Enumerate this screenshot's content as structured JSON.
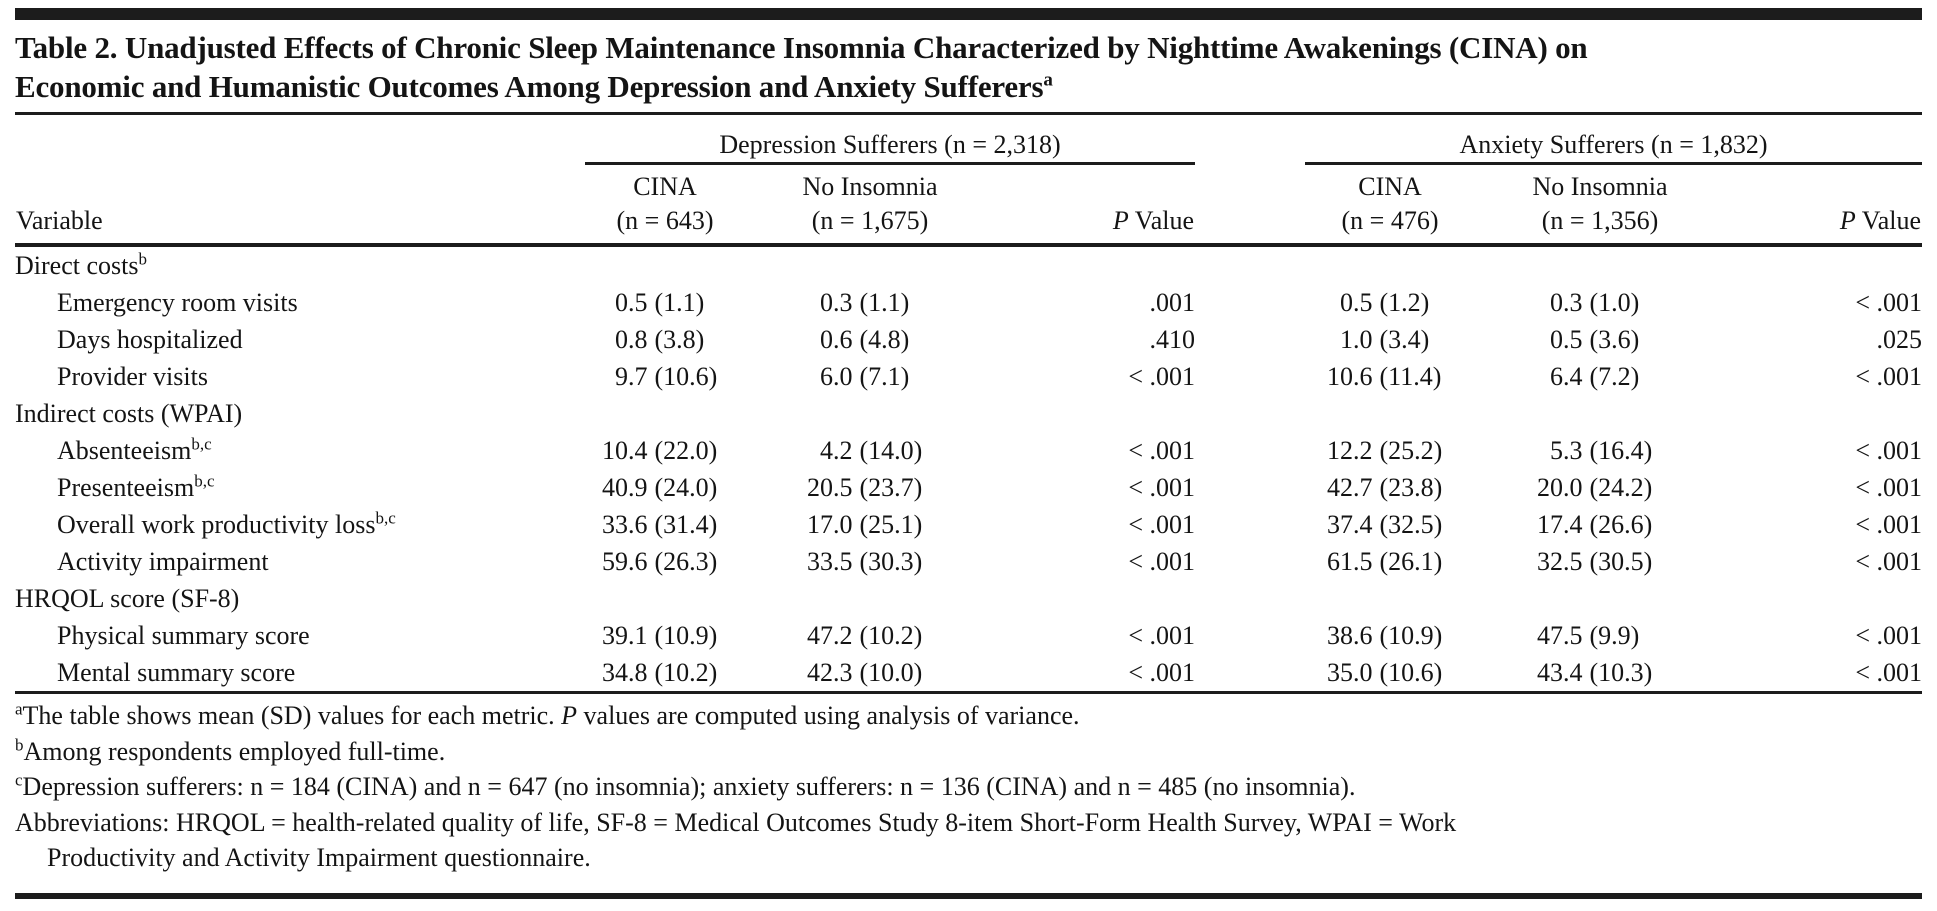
{
  "title": {
    "line1": "Table 2. Unadjusted Effects of Chronic Sleep Maintenance Insomnia Characterized by Nighttime Awakenings (CINA) on",
    "line2": "Economic and Humanistic Outcomes Among Depression and Anxiety Sufferers",
    "sup": "a"
  },
  "header": {
    "variable_label": "Variable",
    "group1": {
      "title": "Depression Sufferers (n = 2,318)",
      "cols": [
        {
          "top": "CINA",
          "bottom": "(n = 643)"
        },
        {
          "top": "No Insomnia",
          "bottom": "(n = 1,675)"
        }
      ],
      "p_italic": "P",
      "p_rest": " Value"
    },
    "group2": {
      "title": "Anxiety Sufferers (n = 1,832)",
      "cols": [
        {
          "top": "CINA",
          "bottom": "(n = 476)"
        },
        {
          "top": "No Insomnia",
          "bottom": "(n = 1,356)"
        }
      ],
      "p_italic": "P",
      "p_rest": " Value"
    }
  },
  "rows": [
    {
      "type": "section",
      "label": "Direct costs",
      "sup": "b"
    },
    {
      "type": "data",
      "label": "Emergency room visits",
      "sup": "",
      "dep": {
        "cina": [
          "0.5",
          "(1.1)"
        ],
        "no_insomnia": [
          "0.3",
          "(1.1)"
        ],
        "p": ".001"
      },
      "anx": {
        "cina": [
          "0.5",
          "(1.2)"
        ],
        "no_insomnia": [
          "0.3",
          "(1.0)"
        ],
        "p": "< .001"
      }
    },
    {
      "type": "data",
      "label": "Days hospitalized",
      "sup": "",
      "dep": {
        "cina": [
          "0.8",
          "(3.8)"
        ],
        "no_insomnia": [
          "0.6",
          "(4.8)"
        ],
        "p": ".410"
      },
      "anx": {
        "cina": [
          "1.0",
          "(3.4)"
        ],
        "no_insomnia": [
          "0.5",
          "(3.6)"
        ],
        "p": ".025"
      }
    },
    {
      "type": "data",
      "label": "Provider visits",
      "sup": "",
      "dep": {
        "cina": [
          "9.7",
          "(10.6)"
        ],
        "no_insomnia": [
          "6.0",
          "(7.1)"
        ],
        "p": "< .001"
      },
      "anx": {
        "cina": [
          "10.6",
          "(11.4)"
        ],
        "no_insomnia": [
          "6.4",
          "(7.2)"
        ],
        "p": "< .001"
      }
    },
    {
      "type": "section",
      "label": "Indirect costs (WPAI)",
      "sup": ""
    },
    {
      "type": "data",
      "label": "Absenteeism",
      "sup": "b,c",
      "dep": {
        "cina": [
          "10.4",
          "(22.0)"
        ],
        "no_insomnia": [
          "4.2",
          "(14.0)"
        ],
        "p": "< .001"
      },
      "anx": {
        "cina": [
          "12.2",
          "(25.2)"
        ],
        "no_insomnia": [
          "5.3",
          "(16.4)"
        ],
        "p": "< .001"
      }
    },
    {
      "type": "data",
      "label": "Presenteeism",
      "sup": "b,c",
      "dep": {
        "cina": [
          "40.9",
          "(24.0)"
        ],
        "no_insomnia": [
          "20.5",
          "(23.7)"
        ],
        "p": "< .001"
      },
      "anx": {
        "cina": [
          "42.7",
          "(23.8)"
        ],
        "no_insomnia": [
          "20.0",
          "(24.2)"
        ],
        "p": "< .001"
      }
    },
    {
      "type": "data",
      "label": "Overall work productivity loss",
      "sup": "b,c",
      "dep": {
        "cina": [
          "33.6",
          "(31.4)"
        ],
        "no_insomnia": [
          "17.0",
          "(25.1)"
        ],
        "p": "< .001"
      },
      "anx": {
        "cina": [
          "37.4",
          "(32.5)"
        ],
        "no_insomnia": [
          "17.4",
          "(26.6)"
        ],
        "p": "< .001"
      }
    },
    {
      "type": "data",
      "label": "Activity impairment",
      "sup": "",
      "dep": {
        "cina": [
          "59.6",
          "(26.3)"
        ],
        "no_insomnia": [
          "33.5",
          "(30.3)"
        ],
        "p": "< .001"
      },
      "anx": {
        "cina": [
          "61.5",
          "(26.1)"
        ],
        "no_insomnia": [
          "32.5",
          "(30.5)"
        ],
        "p": "< .001"
      }
    },
    {
      "type": "section",
      "label": "HRQOL score (SF-8)",
      "sup": ""
    },
    {
      "type": "data",
      "label": "Physical summary score",
      "sup": "",
      "dep": {
        "cina": [
          "39.1",
          "(10.9)"
        ],
        "no_insomnia": [
          "47.2",
          "(10.2)"
        ],
        "p": "< .001"
      },
      "anx": {
        "cina": [
          "38.6",
          "(10.9)"
        ],
        "no_insomnia": [
          "47.5",
          "(9.9)"
        ],
        "p": "< .001"
      }
    },
    {
      "type": "data",
      "label": "Mental summary score",
      "sup": "",
      "dep": {
        "cina": [
          "34.8",
          "(10.2)"
        ],
        "no_insomnia": [
          "42.3",
          "(10.0)"
        ],
        "p": "< .001"
      },
      "anx": {
        "cina": [
          "35.0",
          "(10.6)"
        ],
        "no_insomnia": [
          "43.4",
          "(10.3)"
        ],
        "p": "< .001"
      }
    }
  ],
  "footnotes": [
    {
      "sup": "a",
      "segments": [
        {
          "t": "The table shows mean (SD) values for each metric. "
        },
        {
          "t": "P",
          "i": true
        },
        {
          "t": " values are computed using analysis of variance."
        }
      ]
    },
    {
      "sup": "b",
      "segments": [
        {
          "t": "Among respondents employed full-time."
        }
      ]
    },
    {
      "sup": "c",
      "segments": [
        {
          "t": "Depression sufferers: n = 184 (CINA) and n = 647 (no insomnia); anxiety sufferers: n = 136 (CINA) and n = 485 (no insomnia)."
        }
      ]
    },
    {
      "sup": "",
      "segments": [
        {
          "t": "Abbreviations: HRQOL = health-related quality of life, SF-8 = Medical Outcomes Study 8-item Short-Form Health Survey, WPAI = Work"
        },
        {
          "br": true
        },
        {
          "t": "Productivity and Activity Impairment questionnaire.",
          "cont": true
        }
      ]
    }
  ]
}
